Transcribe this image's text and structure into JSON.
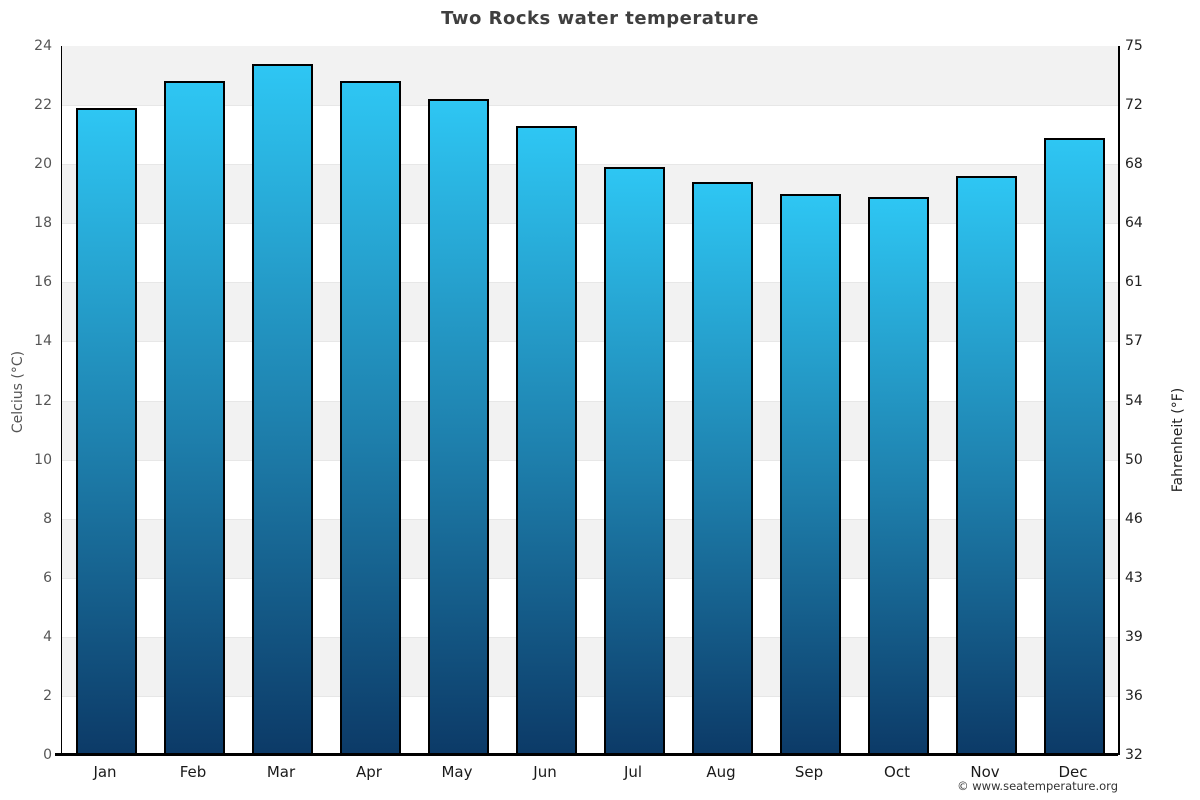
{
  "title": "Two Rocks water temperature",
  "footer": "© www.seatemperature.org",
  "chart_data": {
    "type": "bar",
    "title": "Two Rocks water temperature",
    "categories": [
      "Jan",
      "Feb",
      "Mar",
      "Apr",
      "May",
      "Jun",
      "Jul",
      "Aug",
      "Sep",
      "Oct",
      "Nov",
      "Dec"
    ],
    "values": [
      21.9,
      22.8,
      23.4,
      22.8,
      22.2,
      21.3,
      19.9,
      19.4,
      19.0,
      18.9,
      19.6,
      20.9
    ],
    "values_unit": "°C",
    "xlabel": "",
    "ylabel_left": "Celcius (°C)",
    "ylabel_right": "Fahrenheit (°F)",
    "ylim_celsius": [
      0,
      24
    ],
    "yticks_celsius": [
      24,
      22,
      20,
      18,
      16,
      14,
      12,
      10,
      8,
      6,
      4,
      2,
      0
    ],
    "yticks_fahrenheit": [
      75,
      72,
      68,
      64,
      61,
      57,
      54,
      50,
      46,
      43,
      39,
      36,
      32
    ],
    "grid": "alternating horizontal bands every 2°C, gray top band",
    "legend": "none",
    "colors": {
      "bar_gradient_top": "#2ec6f3",
      "bar_gradient_bottom": "#0c3a67",
      "bar_border": "#000000",
      "band_gray": "#f2f2f2",
      "band_white": "#ffffff",
      "gridline": "#e7e7e7",
      "axis_line": "#000000",
      "title_text": "#3f3f3f",
      "left_axis_text": "#555555",
      "right_axis_text": "#222222"
    }
  }
}
